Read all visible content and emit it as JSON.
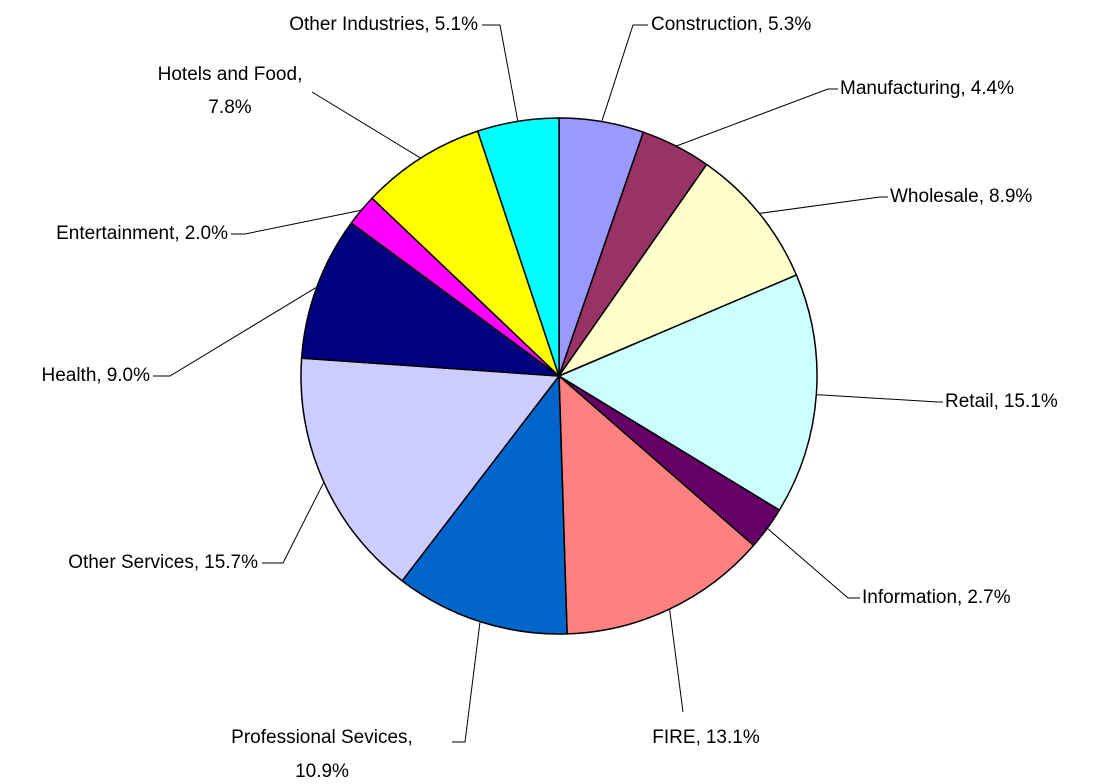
{
  "chart_data": {
    "type": "pie",
    "categories": [
      "Construction",
      "Manufacturing",
      "Wholesale",
      "Retail",
      "Information",
      "FIRE",
      "Professional Sevices",
      "Other Services",
      "Health",
      "Entertainment",
      "Hotels and Food",
      "Other Industries"
    ],
    "values": [
      5.3,
      4.4,
      8.9,
      15.1,
      2.7,
      13.1,
      10.9,
      15.7,
      9.0,
      2.0,
      7.8,
      5.1
    ],
    "value_labels": [
      "5.3%",
      "4.4%",
      "8.9%",
      "15.1%",
      "2.7%",
      "13.1%",
      "10.9%",
      "15.7%",
      "9.0%",
      "2.0%",
      "7.8%",
      "5.1%"
    ],
    "label_separator": ",",
    "colors": [
      "#9999ff",
      "#993366",
      "#ffffcc",
      "#ccffff",
      "#660066",
      "#ff8080",
      "#0066cc",
      "#ccccff",
      "#000080",
      "#ff00ff",
      "#ffff00",
      "#00ffff"
    ]
  }
}
